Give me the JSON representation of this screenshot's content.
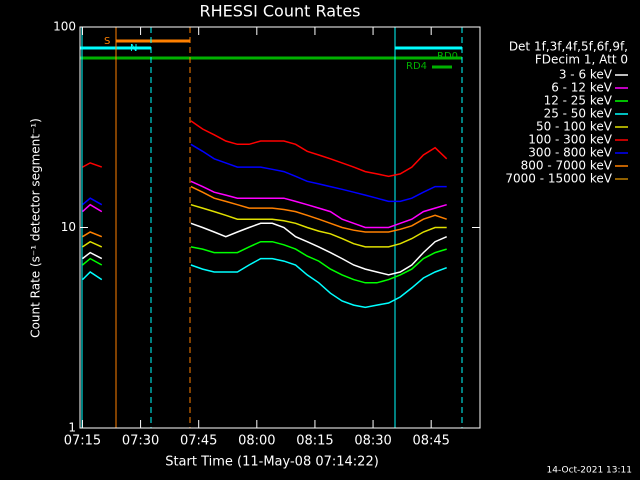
{
  "chart_data": {
    "type": "line",
    "title": "RHESSI Count Rates",
    "xlabel": "Start Time (11-May-08 07:14:22)",
    "ylabel": "Count Rate (s⁻¹ detector segment⁻¹)",
    "legend_header": [
      "Det 1f,3f,4f,5f,6f,9f,",
      "FDecim 1, Att 0"
    ],
    "footer": "14-Oct-2021 13:11",
    "log_y": true,
    "ylim": [
      1,
      100
    ],
    "yticks": [
      1,
      10,
      100
    ],
    "xlim": [
      "07:14:22",
      "08:57:36"
    ],
    "xticks": [
      "07:15",
      "07:30",
      "07:45",
      "08:00",
      "08:15",
      "08:30",
      "08:45"
    ],
    "annotations": [
      {
        "text": "S",
        "color": "#ff8000"
      },
      {
        "text": "N",
        "color": "#00ffff"
      },
      {
        "text": "RD0",
        "color": "#00b000"
      },
      {
        "text": "RD4",
        "color": "#00b000"
      }
    ],
    "x": [
      "07:15",
      "07:17",
      "07:20",
      "07:30",
      "07:43",
      "07:46",
      "07:49",
      "07:52",
      "07:55",
      "07:58",
      "08:01",
      "08:04",
      "08:07",
      "08:10",
      "08:13",
      "08:16",
      "08:19",
      "08:22",
      "08:25",
      "08:28",
      "08:31",
      "08:34",
      "08:37",
      "08:40",
      "08:43",
      "08:46",
      "08:49"
    ],
    "series": [
      {
        "name": "3 - 6 keV",
        "color": "#ffffff",
        "values": [
          7,
          7.5,
          7,
          null,
          10.5,
          10,
          9.5,
          9,
          9.5,
          10,
          10.5,
          10.5,
          10,
          9,
          8.5,
          8,
          7.5,
          7,
          6.5,
          6.2,
          6,
          5.8,
          6,
          6.5,
          7.5,
          8.5,
          9
        ]
      },
      {
        "name": "6 - 12 keV",
        "color": "#ff00ff",
        "values": [
          12,
          13,
          12,
          null,
          17,
          16,
          15,
          14.5,
          14,
          14,
          14,
          14,
          14,
          13.5,
          13,
          12.5,
          12,
          11,
          10.5,
          10,
          10,
          10,
          10.5,
          11,
          12,
          12.5,
          13
        ]
      },
      {
        "name": "12 - 25 keV",
        "color": "#00ff00",
        "values": [
          6.5,
          7,
          6.5,
          null,
          8,
          7.8,
          7.5,
          7.5,
          7.5,
          8,
          8.5,
          8.5,
          8.2,
          7.8,
          7.2,
          6.8,
          6.2,
          5.8,
          5.5,
          5.3,
          5.3,
          5.5,
          5.8,
          6.2,
          7,
          7.5,
          7.8
        ]
      },
      {
        "name": "25 - 50 keV",
        "color": "#00ffff",
        "values": [
          5.5,
          6,
          5.5,
          null,
          6.5,
          6.2,
          6,
          6,
          6,
          6.5,
          7,
          7,
          6.8,
          6.5,
          5.8,
          5.3,
          4.7,
          4.3,
          4.1,
          4,
          4.1,
          4.2,
          4.5,
          5,
          5.6,
          6,
          6.3
        ]
      },
      {
        "name": "50 - 100 keV",
        "color": "#e0e000",
        "values": [
          8,
          8.5,
          8,
          null,
          13,
          12.5,
          12,
          11.5,
          11,
          11,
          11,
          11,
          10.8,
          10.5,
          10,
          9.6,
          9.3,
          8.8,
          8.3,
          8,
          8,
          8,
          8.3,
          8.8,
          9.5,
          10,
          10
        ]
      },
      {
        "name": "100 - 300 keV",
        "color": "#ff0000",
        "values": [
          20,
          21,
          20,
          null,
          34,
          31,
          29,
          27,
          26,
          26,
          27,
          27,
          27,
          26,
          24,
          23,
          22,
          21,
          20,
          19,
          18.5,
          18,
          18.5,
          20,
          23,
          25,
          22
        ]
      },
      {
        "name": "300 - 800 keV",
        "color": "#0000ff",
        "values": [
          13,
          14,
          13,
          null,
          26,
          24,
          22,
          21,
          20,
          20,
          20,
          19.5,
          19,
          18,
          17,
          16.5,
          16,
          15.5,
          15,
          14.5,
          14,
          13.5,
          13.5,
          14,
          15,
          16,
          16
        ]
      },
      {
        "name": "800 - 7000 keV",
        "color": "#ff8000",
        "values": [
          9,
          9.5,
          9,
          null,
          16,
          15,
          14,
          13.5,
          13,
          12.5,
          12.5,
          12.5,
          12.3,
          12,
          11.5,
          11,
          10.5,
          10,
          9.7,
          9.5,
          9.5,
          9.5,
          9.8,
          10.2,
          11,
          11.5,
          11
        ]
      },
      {
        "name": "7000 - 15000 keV",
        "color": "#c08000",
        "values": [
          null,
          null,
          null,
          null,
          null,
          null,
          null,
          null,
          null,
          null,
          null,
          null,
          null,
          null,
          null,
          null,
          null,
          null,
          null,
          null,
          null,
          null,
          null,
          null,
          null,
          null,
          null
        ]
      }
    ]
  }
}
